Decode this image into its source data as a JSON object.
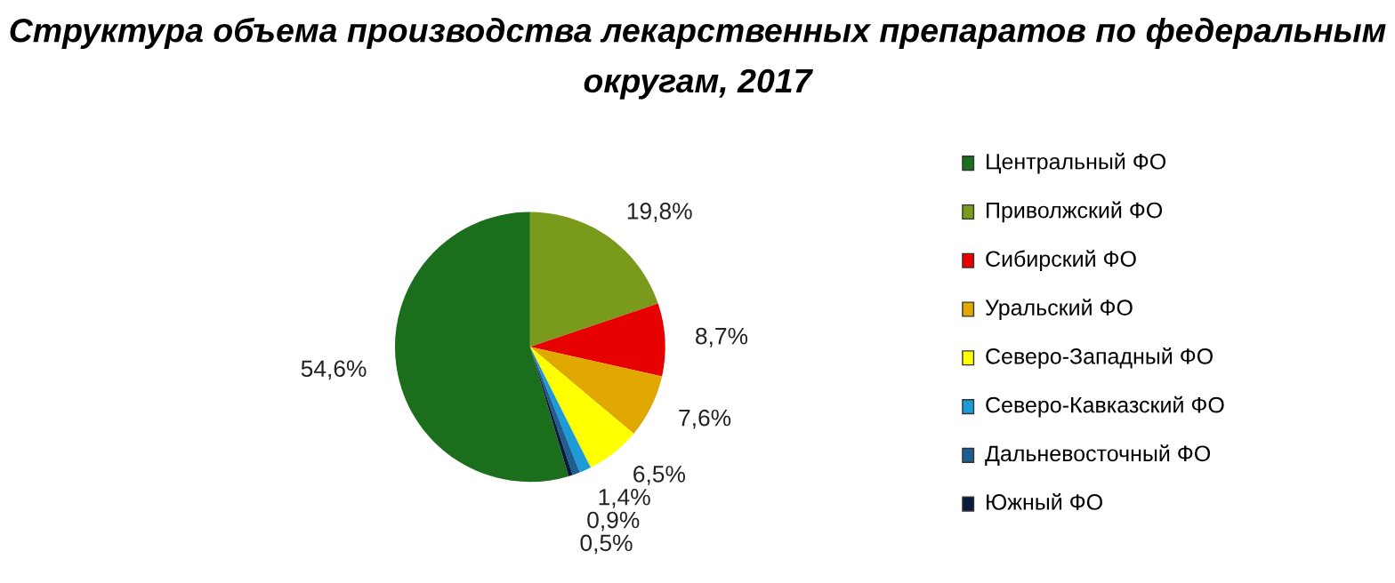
{
  "chart_data": {
    "type": "pie",
    "title": "Структура объема производства лекарственных препаратов по федеральным\nокругам, 2017",
    "categories": [
      "Центральный ФО",
      "Приволжский ФО",
      "Сибирский ФО",
      "Уральский ФО",
      "Северо-Западный ФО",
      "Северо-Кавказский ФО",
      "Дальневосточный ФО",
      "Южный ФО"
    ],
    "values": [
      54.6,
      19.8,
      8.7,
      7.6,
      6.5,
      1.4,
      0.9,
      0.5
    ],
    "value_labels": [
      "54,6%",
      "19,8%",
      "8,7%",
      "7,6%",
      "6,5%",
      "1,4%",
      "0,9%",
      "0,5%"
    ],
    "colors": [
      "#1b6e1b",
      "#7a9a1c",
      "#e60000",
      "#e0a800",
      "#ffff00",
      "#1e9ad6",
      "#1f5f8f",
      "#0b1a3c"
    ],
    "legend": "right"
  }
}
